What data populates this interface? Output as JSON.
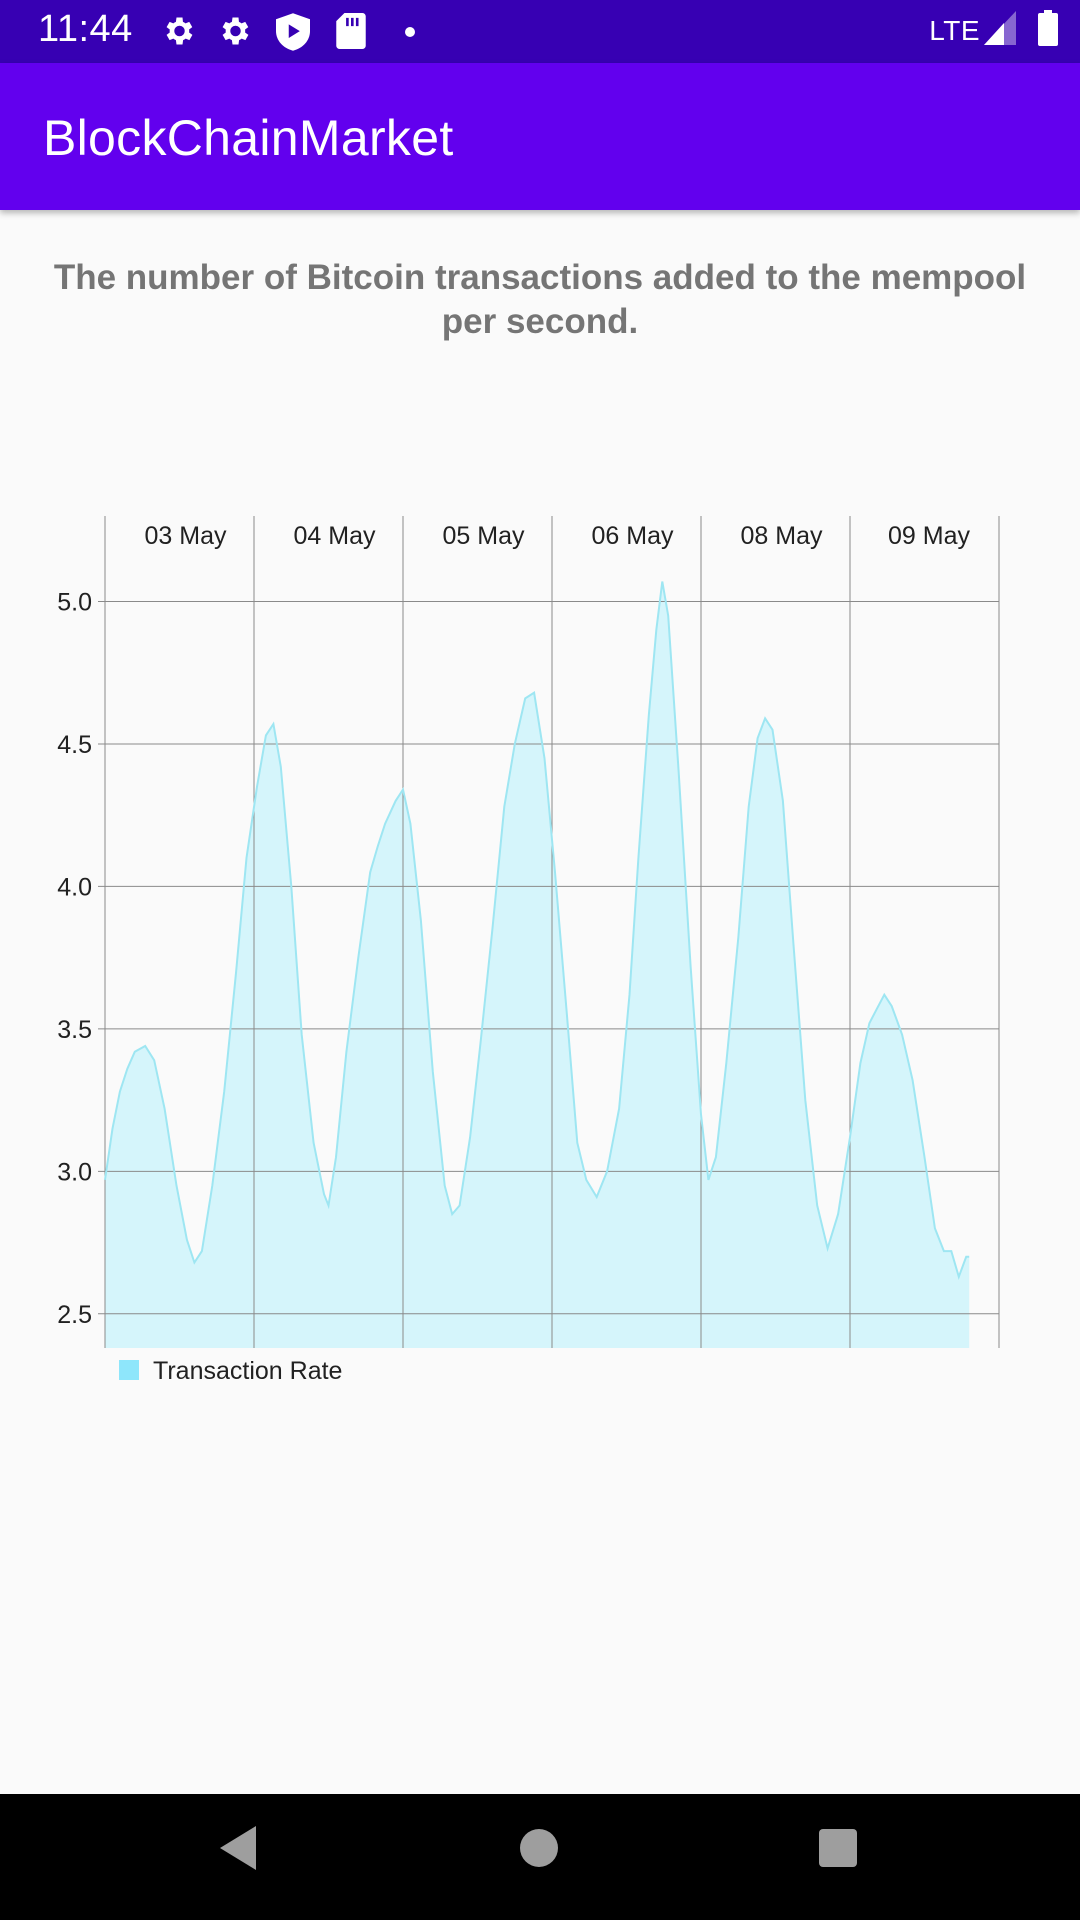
{
  "status_bar": {
    "time": "11:44",
    "network": "LTE",
    "left_icons": [
      "gear-icon",
      "gear-icon",
      "shield-play-icon",
      "sd-card-icon",
      "dot-icon"
    ],
    "right_icons": [
      "signal-icon",
      "battery-icon"
    ]
  },
  "app_bar": {
    "title": "BlockChainMarket"
  },
  "chart_title": "The number of Bitcoin transactions added to the mempool per second.",
  "nav_bar": {
    "buttons": [
      "back-icon",
      "home-icon",
      "recents-icon"
    ]
  },
  "colors": {
    "status_bar": "#3700b3",
    "app_bar": "#6200ee",
    "series_fill": "#d5f5fb",
    "series_line": "#9ee6f2",
    "legend_swatch": "#8ee6fb"
  },
  "chart_data": {
    "type": "area",
    "title": "The number of Bitcoin transactions added to the mempool per second.",
    "xlabel": "",
    "ylabel": "",
    "x_tick_labels": [
      "03 May",
      "04 May",
      "05 May",
      "06 May",
      "08 May",
      "09 May"
    ],
    "x_axis_position": "top",
    "y_ticks": [
      2.5,
      3.0,
      3.5,
      4.0,
      4.5,
      5.0
    ],
    "ylim": [
      2.38,
      5.3
    ],
    "x_range": [
      0,
      6
    ],
    "grid": true,
    "legend_position": "bottom-left",
    "series": [
      {
        "name": "Transaction Rate",
        "points": [
          [
            0.0,
            2.97
          ],
          [
            0.05,
            3.15
          ],
          [
            0.1,
            3.28
          ],
          [
            0.15,
            3.36
          ],
          [
            0.2,
            3.42
          ],
          [
            0.27,
            3.44
          ],
          [
            0.33,
            3.39
          ],
          [
            0.4,
            3.22
          ],
          [
            0.48,
            2.95
          ],
          [
            0.55,
            2.76
          ],
          [
            0.6,
            2.68
          ],
          [
            0.65,
            2.72
          ],
          [
            0.72,
            2.95
          ],
          [
            0.8,
            3.28
          ],
          [
            0.88,
            3.7
          ],
          [
            0.95,
            4.1
          ],
          [
            1.02,
            4.35
          ],
          [
            1.08,
            4.53
          ],
          [
            1.13,
            4.57
          ],
          [
            1.18,
            4.42
          ],
          [
            1.25,
            4.0
          ],
          [
            1.32,
            3.48
          ],
          [
            1.4,
            3.1
          ],
          [
            1.47,
            2.92
          ],
          [
            1.5,
            2.88
          ],
          [
            1.55,
            3.05
          ],
          [
            1.62,
            3.42
          ],
          [
            1.7,
            3.75
          ],
          [
            1.78,
            4.05
          ],
          [
            1.83,
            4.14
          ],
          [
            1.88,
            4.22
          ],
          [
            1.95,
            4.3
          ],
          [
            2.0,
            4.34
          ],
          [
            2.05,
            4.22
          ],
          [
            2.12,
            3.88
          ],
          [
            2.2,
            3.35
          ],
          [
            2.28,
            2.95
          ],
          [
            2.33,
            2.85
          ],
          [
            2.38,
            2.88
          ],
          [
            2.45,
            3.12
          ],
          [
            2.52,
            3.45
          ],
          [
            2.6,
            3.85
          ],
          [
            2.68,
            4.28
          ],
          [
            2.75,
            4.5
          ],
          [
            2.82,
            4.66
          ],
          [
            2.88,
            4.68
          ],
          [
            2.95,
            4.45
          ],
          [
            3.02,
            4.05
          ],
          [
            3.1,
            3.55
          ],
          [
            3.17,
            3.1
          ],
          [
            3.23,
            2.97
          ],
          [
            3.3,
            2.91
          ],
          [
            3.37,
            3.0
          ],
          [
            3.45,
            3.22
          ],
          [
            3.52,
            3.62
          ],
          [
            3.58,
            4.1
          ],
          [
            3.65,
            4.6
          ],
          [
            3.7,
            4.9
          ],
          [
            3.74,
            5.07
          ],
          [
            3.78,
            4.95
          ],
          [
            3.85,
            4.4
          ],
          [
            3.93,
            3.72
          ],
          [
            4.0,
            3.2
          ],
          [
            4.05,
            2.97
          ],
          [
            4.1,
            3.05
          ],
          [
            4.17,
            3.38
          ],
          [
            4.25,
            3.82
          ],
          [
            4.32,
            4.28
          ],
          [
            4.38,
            4.52
          ],
          [
            4.43,
            4.59
          ],
          [
            4.48,
            4.55
          ],
          [
            4.55,
            4.3
          ],
          [
            4.62,
            3.8
          ],
          [
            4.7,
            3.25
          ],
          [
            4.78,
            2.88
          ],
          [
            4.85,
            2.73
          ],
          [
            4.92,
            2.85
          ],
          [
            5.0,
            3.12
          ],
          [
            5.07,
            3.38
          ],
          [
            5.13,
            3.52
          ],
          [
            5.18,
            3.57
          ],
          [
            5.23,
            3.62
          ],
          [
            5.28,
            3.58
          ],
          [
            5.35,
            3.48
          ],
          [
            5.42,
            3.32
          ],
          [
            5.5,
            3.05
          ],
          [
            5.57,
            2.8
          ],
          [
            5.63,
            2.72
          ],
          [
            5.68,
            2.72
          ],
          [
            5.73,
            2.63
          ],
          [
            5.78,
            2.7
          ],
          [
            5.8,
            2.7
          ]
        ]
      }
    ]
  }
}
